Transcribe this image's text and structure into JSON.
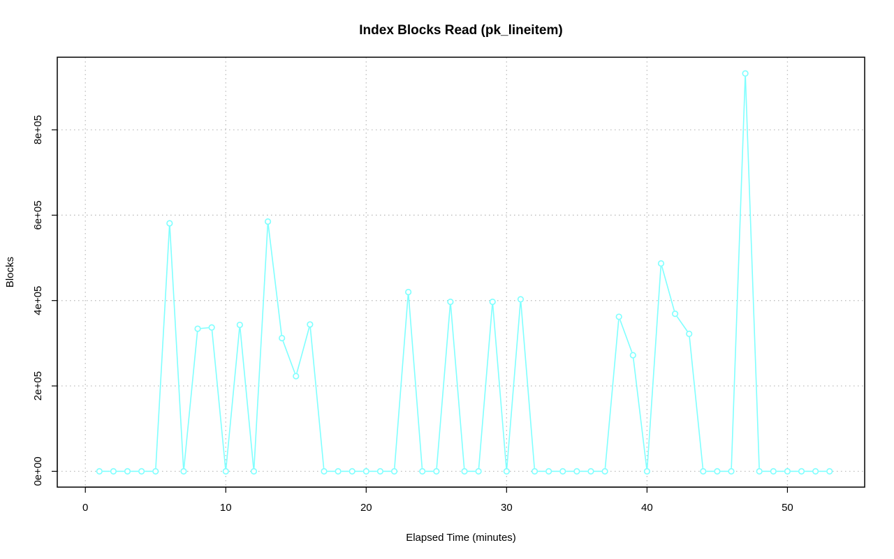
{
  "chart_data": {
    "type": "line",
    "title": "Index Blocks Read (pk_lineitem)",
    "xlabel": "Elapsed Time (minutes)",
    "ylabel": "Blocks",
    "xlim": [
      -2,
      55.5
    ],
    "ylim": [
      -37000,
      970000
    ],
    "x_ticks": [
      0,
      10,
      20,
      30,
      40,
      50
    ],
    "x_tick_labels": [
      "0",
      "10",
      "20",
      "30",
      "40",
      "50"
    ],
    "y_ticks": [
      0,
      200000,
      400000,
      600000,
      800000
    ],
    "y_tick_labels": [
      "0e+00",
      "2e+05",
      "4e+05",
      "6e+05",
      "8e+05"
    ],
    "grid": true,
    "series": [
      {
        "color": "#7fffff",
        "x": [
          1,
          2,
          3,
          4,
          5,
          6,
          7,
          8,
          9,
          10,
          11,
          12,
          13,
          14,
          15,
          16,
          17,
          18,
          19,
          20,
          21,
          22,
          23,
          24,
          25,
          26,
          27,
          28,
          29,
          30,
          31,
          32,
          33,
          34,
          35,
          36,
          37,
          38,
          39,
          40,
          41,
          42,
          43,
          44,
          45,
          46,
          47,
          48,
          49,
          50,
          51,
          52,
          53
        ],
        "y": [
          0,
          0,
          0,
          0,
          0,
          581000,
          0,
          334000,
          337000,
          0,
          343000,
          0,
          585000,
          312000,
          223000,
          344000,
          0,
          0,
          0,
          0,
          0,
          0,
          420000,
          0,
          0,
          397000,
          0,
          0,
          397000,
          0,
          403000,
          0,
          0,
          0,
          0,
          0,
          0,
          362000,
          272000,
          0,
          487000,
          369000,
          322000,
          0,
          0,
          0,
          932000,
          0,
          0,
          0,
          0,
          0,
          0
        ]
      }
    ]
  }
}
